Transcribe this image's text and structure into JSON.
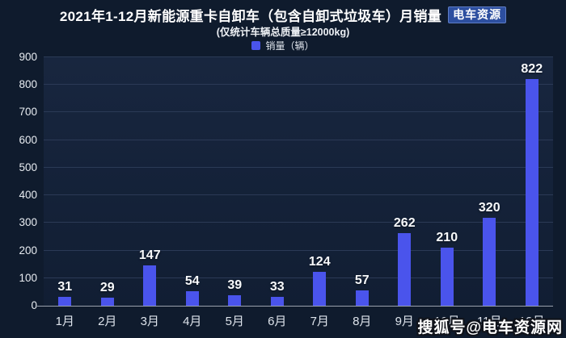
{
  "header": {
    "title": "2021年1-12月新能源重卡自卸车（包含自卸式垃圾车）月销量",
    "badge": "电车资源",
    "subtitle": "(仅统计车辆总质量≥12000kg)"
  },
  "legend": {
    "label": "销量（辆）"
  },
  "watermark": {
    "text": "搜狐号@电车资源网"
  },
  "colors": {
    "background": "#0f1b2d",
    "plot_top": "#18263f",
    "plot_bottom": "#111e33",
    "grid": "#2b3a56",
    "axis_line": "#9aa1ad",
    "bar": "#4a54ec",
    "badge_bg": "#2d4fa0"
  },
  "chart_data": {
    "type": "bar",
    "title": "2021年1-12月新能源重卡自卸车（包含自卸式垃圾车）月销量",
    "subtitle": "(仅统计车辆总质量≥12000kg)",
    "series_name": "销量（辆）",
    "categories": [
      "1月",
      "2月",
      "3月",
      "4月",
      "5月",
      "6月",
      "7月",
      "8月",
      "9月",
      "10月",
      "11月",
      "12月"
    ],
    "values": [
      31,
      29,
      147,
      54,
      39,
      33,
      124,
      57,
      262,
      210,
      320,
      822
    ],
    "xlabel": "",
    "ylabel": "销量（辆）",
    "ylim": [
      0,
      900
    ],
    "ytick_step": 100,
    "grid": true,
    "legend_position": "top-center"
  }
}
